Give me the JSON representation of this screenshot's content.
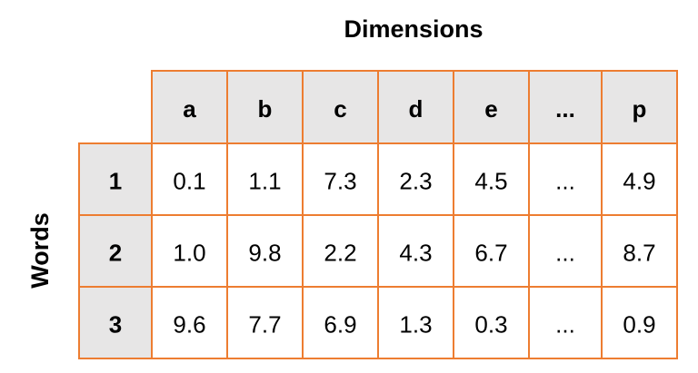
{
  "title": "Dimensions",
  "side_label": "Words",
  "table": {
    "columns": [
      "a",
      "b",
      "c",
      "d",
      "e",
      "...",
      "p"
    ],
    "rows": [
      {
        "label": "1",
        "cells": [
          "0.1",
          "1.1",
          "7.3",
          "2.3",
          "4.5",
          "...",
          "4.9"
        ]
      },
      {
        "label": "2",
        "cells": [
          "1.0",
          "9.8",
          "2.2",
          "4.3",
          "6.7",
          "...",
          "8.7"
        ]
      },
      {
        "label": "3",
        "cells": [
          "9.6",
          "7.7",
          "6.9",
          "1.3",
          "0.3",
          "...",
          "0.9"
        ]
      }
    ]
  }
}
